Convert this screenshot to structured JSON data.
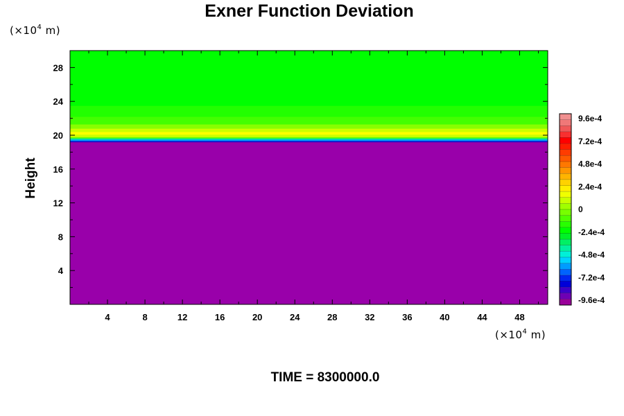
{
  "chart_data": {
    "type": "heatmap",
    "title": "Exner Function Deviation",
    "ylabel": "Height",
    "x_unit": {
      "prefix": "(×10",
      "exponent": "4",
      "suffix": " m)"
    },
    "y_unit": {
      "prefix": "(×10",
      "exponent": "4",
      "suffix": " m)"
    },
    "xlim": [
      0,
      51
    ],
    "ylim": [
      0,
      30
    ],
    "x_ticks": [
      4,
      8,
      12,
      16,
      20,
      24,
      28,
      32,
      36,
      40,
      44,
      48
    ],
    "y_ticks": [
      4,
      8,
      12,
      16,
      20,
      24,
      28
    ],
    "field_layers": [
      {
        "y0": 0,
        "y1": 19.2,
        "value": -0.00096,
        "color": "#9900aa"
      },
      {
        "y0": 19.2,
        "y1": 19.35,
        "value": -0.00072,
        "color": "#1010c8"
      },
      {
        "y0": 19.35,
        "y1": 19.5,
        "value": -0.00048,
        "color": "#00a0ff"
      },
      {
        "y0": 19.5,
        "y1": 19.65,
        "value": -0.00024,
        "color": "#00e0a0"
      },
      {
        "y0": 19.65,
        "y1": 19.8,
        "value": 0.00012,
        "color": "#66ff00"
      },
      {
        "y0": 19.8,
        "y1": 20.1,
        "value": 0.00036,
        "color": "#ccff00"
      },
      {
        "y0": 20.1,
        "y1": 20.4,
        "value": 0.00042,
        "color": "#ffff00"
      },
      {
        "y0": 20.4,
        "y1": 20.8,
        "value": 0.00036,
        "color": "#ccff00"
      },
      {
        "y0": 20.8,
        "y1": 21.3,
        "value": 0.00024,
        "color": "#88ff00"
      },
      {
        "y0": 21.3,
        "y1": 22.2,
        "value": 0.00012,
        "color": "#44ff00"
      },
      {
        "y0": 22.2,
        "y1": 23.5,
        "value": 6e-05,
        "color": "#22ff00"
      },
      {
        "y0": 23.5,
        "y1": 30,
        "value": 0.0,
        "color": "#00ff00"
      }
    ],
    "colorbar": {
      "min": -0.00096,
      "max": 0.00096,
      "levels": 32,
      "tick_labels": [
        "9.6e-4",
        "7.2e-4",
        "4.8e-4",
        "2.4e-4",
        "0",
        "-2.4e-4",
        "-4.8e-4",
        "-7.2e-4",
        "-9.6e-4"
      ],
      "colors": [
        "#990099",
        "#6e00b4",
        "#3c00c8",
        "#0000d8",
        "#0028f0",
        "#0064ff",
        "#009cff",
        "#00d2ff",
        "#00f0d8",
        "#00f0a0",
        "#00f064",
        "#00f028",
        "#00ff00",
        "#28ff00",
        "#50ff00",
        "#78ff00",
        "#a0ff00",
        "#c8ff00",
        "#f0ff00",
        "#ffee00",
        "#ffd200",
        "#ffb400",
        "#ff9600",
        "#ff7800",
        "#ff5a00",
        "#ff3c00",
        "#ff1e00",
        "#ff0000",
        "#f83030",
        "#f05858",
        "#f07878",
        "#f09090"
      ]
    },
    "time_label": "TIME = 8300000.0",
    "grid": false,
    "legend": "colorbar-right"
  }
}
